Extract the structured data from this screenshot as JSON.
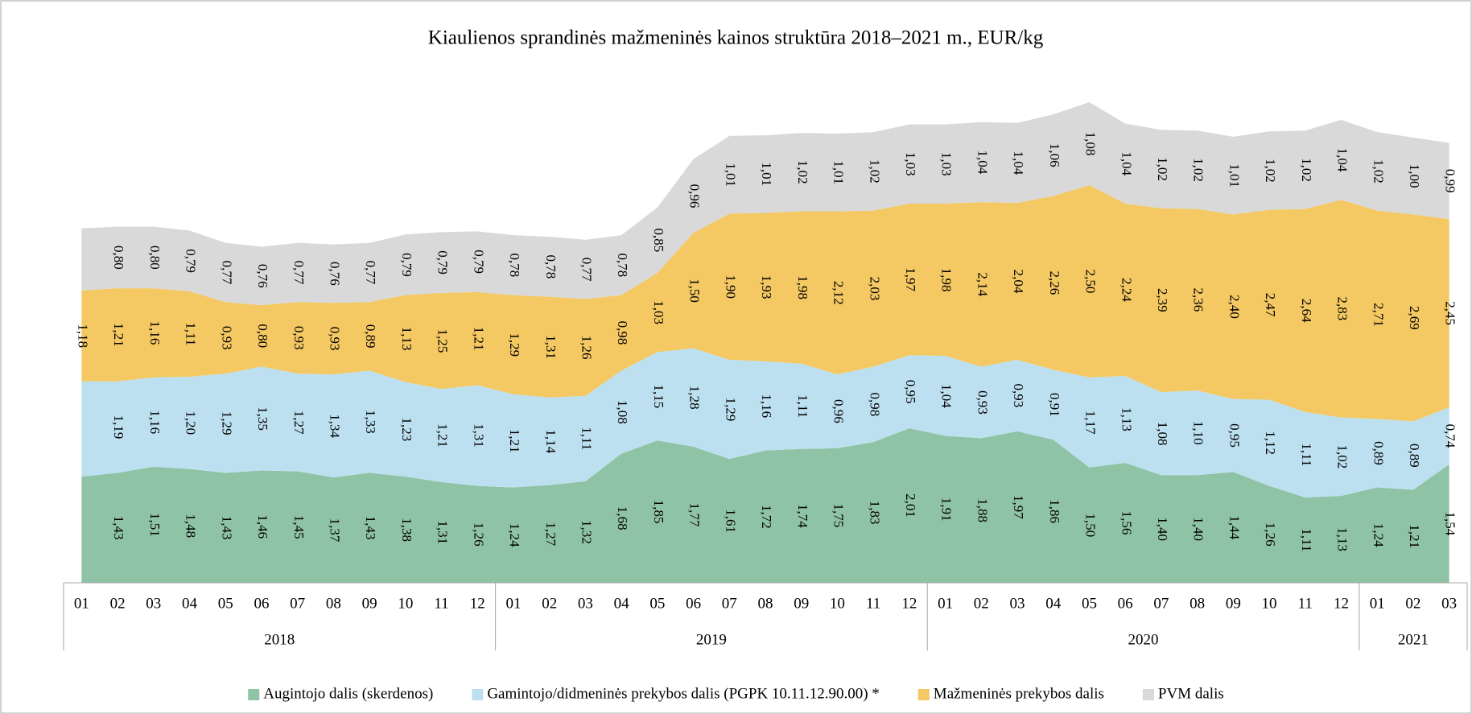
{
  "chart_data": {
    "type": "stacked_area",
    "title": "Kiaulienos sprandinės mažmeninės kainos struktūra 2018–2021 m., EUR/kg",
    "categories": [
      "01",
      "02",
      "03",
      "04",
      "05",
      "06",
      "07",
      "08",
      "09",
      "10",
      "11",
      "12",
      "01",
      "02",
      "03",
      "04",
      "05",
      "06",
      "07",
      "08",
      "09",
      "10",
      "11",
      "12",
      "01",
      "02",
      "03",
      "04",
      "05",
      "06",
      "07",
      "08",
      "09",
      "10",
      "11",
      "12",
      "01",
      "02",
      "03"
    ],
    "category_groups": [
      "2018",
      "2019",
      "2020",
      "2021"
    ],
    "ylim": [
      0,
      6.5
    ],
    "yticks": [
      {
        "value": 0,
        "label": "0,00"
      },
      {
        "value": 0.5,
        "label": "0,50"
      },
      {
        "value": 1,
        "label": "1,00"
      },
      {
        "value": 1.5,
        "label": "1,50"
      },
      {
        "value": 2,
        "label": "2.00"
      },
      {
        "value": 2.5,
        "label": "2,50"
      },
      {
        "value": 3,
        "label": "3.00"
      },
      {
        "value": 3.5,
        "label": "3,50"
      },
      {
        "value": 4,
        "label": "4.00"
      },
      {
        "value": 4.5,
        "label": "4,50"
      },
      {
        "value": 5,
        "label": "5.00"
      },
      {
        "value": 5.5,
        "label": "5,50"
      },
      {
        "value": 6,
        "label": "6.00"
      },
      {
        "value": 6.5,
        "label": "6,50"
      }
    ],
    "grid": true,
    "legend": "bottom",
    "series": [
      {
        "name": "Augintojo dalis (skerdenos)",
        "color": "#8fc3a5",
        "values": [
          1.38,
          1.43,
          1.51,
          1.48,
          1.43,
          1.46,
          1.45,
          1.37,
          1.43,
          1.38,
          1.31,
          1.26,
          1.24,
          1.27,
          1.32,
          1.68,
          1.85,
          1.77,
          1.61,
          1.72,
          1.74,
          1.75,
          1.83,
          2.01,
          1.91,
          1.88,
          1.97,
          1.86,
          1.5,
          1.56,
          1.4,
          1.4,
          1.44,
          1.26,
          1.11,
          1.13,
          1.24,
          1.21,
          1.54
        ],
        "value_labels": [
          null,
          "1,43",
          "1,51",
          "1,48",
          "1,43",
          "1,46",
          "1,45",
          "1,37",
          "1,43",
          "1,38",
          "1,31",
          "1,26",
          "1,24",
          "1,27",
          "1,32",
          "1,68",
          "1,85",
          "1,77",
          "1,61",
          "1,72",
          "1,74",
          "1,75",
          "1,83",
          "2,01",
          "1,91",
          "1,88",
          "1,97",
          "1,86",
          "1,50",
          "1,56",
          "1,40",
          "1,40",
          "1,44",
          "1,26",
          "1,11",
          "1,13",
          "1,24",
          "1,21",
          "1,54"
        ]
      },
      {
        "name": "Gamintojo/didmeninės prekybos dalis (PGPK 10.11.12.90.00) *",
        "color": "#bde0f0",
        "values": [
          1.24,
          1.19,
          1.16,
          1.2,
          1.29,
          1.35,
          1.27,
          1.34,
          1.33,
          1.23,
          1.21,
          1.31,
          1.21,
          1.14,
          1.11,
          1.08,
          1.15,
          1.28,
          1.29,
          1.16,
          1.11,
          0.96,
          0.98,
          0.95,
          1.04,
          0.93,
          0.93,
          0.91,
          1.17,
          1.13,
          1.08,
          1.1,
          0.95,
          1.12,
          1.11,
          1.02,
          0.89,
          0.89,
          0.74
        ],
        "value_labels": [
          null,
          "1,19",
          "1,16",
          "1,20",
          "1,29",
          "1,35",
          "1,27",
          "1,34",
          "1,33",
          "1,23",
          "1,21",
          "1,31",
          "1,21",
          "1,14",
          "1,11",
          "1,08",
          "1,15",
          "1,28",
          "1,29",
          "1,16",
          "1,11",
          "0,96",
          "0,98",
          "0,95",
          "1,04",
          "0,93",
          "0,93",
          "0,91",
          "1,17",
          "1,13",
          "1,08",
          "1,10",
          "0,95",
          "1,12",
          "1,11",
          "1,02",
          "0,89",
          "0,89",
          "0,74"
        ]
      },
      {
        "name": "Mažmeninės prekybos dalis",
        "color": "#f4c862",
        "values": [
          1.18,
          1.21,
          1.16,
          1.11,
          0.93,
          0.8,
          0.93,
          0.93,
          0.89,
          1.13,
          1.25,
          1.21,
          1.29,
          1.31,
          1.26,
          0.98,
          1.03,
          1.5,
          1.9,
          1.93,
          1.98,
          2.12,
          2.03,
          1.97,
          1.98,
          2.14,
          2.04,
          2.26,
          2.5,
          2.24,
          2.39,
          2.36,
          2.4,
          2.47,
          2.64,
          2.83,
          2.71,
          2.69,
          2.45
        ],
        "value_labels": [
          "1,18",
          "1,21",
          "1,16",
          "1,11",
          "0,93",
          "0,80",
          "0,93",
          "0,93",
          "0,89",
          "1,13",
          "1,25",
          "1,21",
          "1,29",
          "1,31",
          "1,26",
          "0,98",
          "1,03",
          "1,50",
          "1,90",
          "1,93",
          "1,98",
          "2,12",
          "2,03",
          "1,97",
          "1,98",
          "2,14",
          "2,04",
          "2,26",
          "2,50",
          "2,24",
          "2,39",
          "2,36",
          "2,40",
          "2,47",
          "2,64",
          "2,83",
          "2,71",
          "2,69",
          "2,45"
        ]
      },
      {
        "name": "PVM dalis",
        "color": "#d9d9d9",
        "values": [
          0.81,
          0.8,
          0.8,
          0.79,
          0.77,
          0.76,
          0.77,
          0.76,
          0.77,
          0.79,
          0.79,
          0.79,
          0.78,
          0.78,
          0.77,
          0.78,
          0.85,
          0.96,
          1.01,
          1.01,
          1.02,
          1.01,
          1.02,
          1.03,
          1.03,
          1.04,
          1.04,
          1.06,
          1.08,
          1.04,
          1.02,
          1.02,
          1.01,
          1.02,
          1.02,
          1.04,
          1.02,
          1.0,
          0.99
        ],
        "value_labels": [
          null,
          "0,80",
          "0,80",
          "0,79",
          "0,77",
          "0,76",
          "0,77",
          "0,76",
          "0,77",
          "0,79",
          "0,79",
          "0,79",
          "0,78",
          "0,78",
          "0,77",
          "0,78",
          "0,85",
          "0,96",
          "1,01",
          "1,01",
          "1,02",
          "1,01",
          "1,02",
          "1,03",
          "1,03",
          "1,04",
          "1,04",
          "1,06",
          "1,08",
          "1,04",
          "1,02",
          "1,02",
          "1,01",
          "1,02",
          "1,02",
          "1,04",
          "1,02",
          "1,00",
          "0,99"
        ]
      }
    ]
  }
}
